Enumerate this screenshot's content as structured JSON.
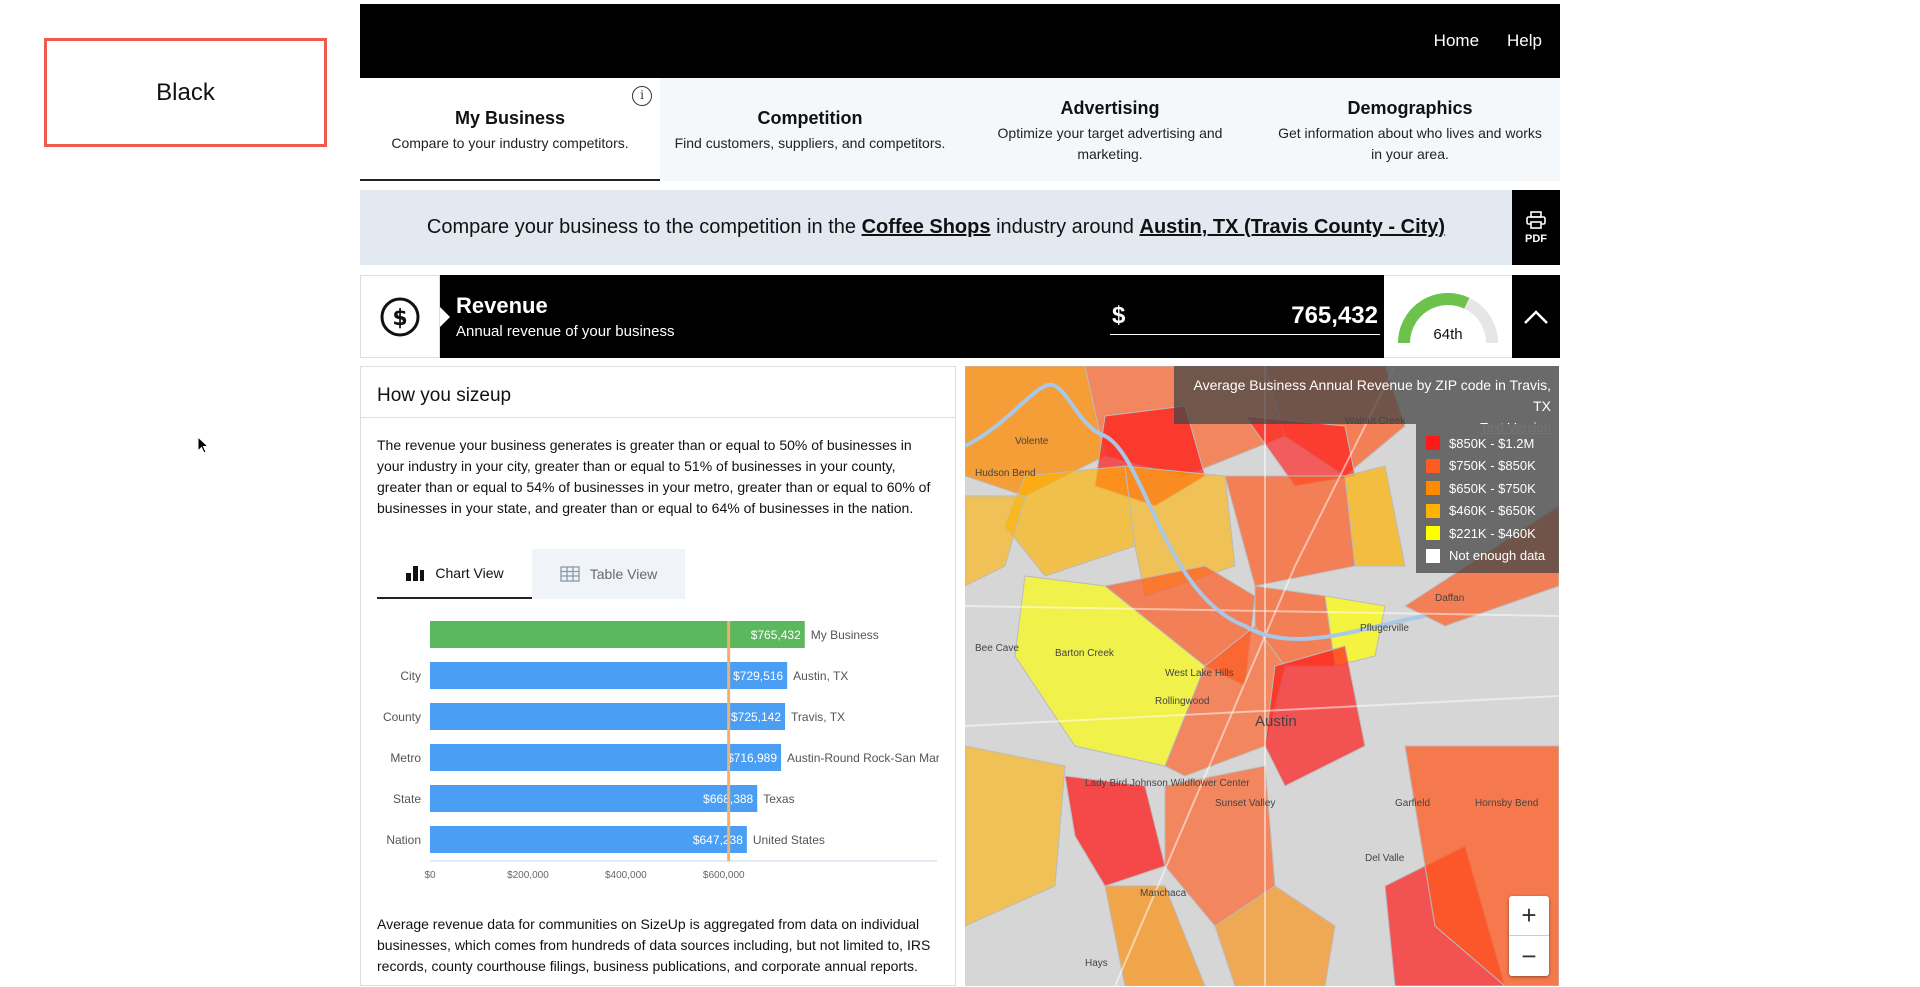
{
  "black_box": {
    "label": "Black"
  },
  "nav": {
    "home": "Home",
    "help": "Help"
  },
  "tabs": [
    {
      "title": "My Business",
      "subtitle": "Compare to your industry competitors."
    },
    {
      "title": "Competition",
      "subtitle": "Find customers, suppliers, and competitors."
    },
    {
      "title": "Advertising",
      "subtitle": "Optimize your target advertising and marketing."
    },
    {
      "title": "Demographics",
      "subtitle": "Get information about who lives and works in your area."
    }
  ],
  "compare": {
    "prefix": "Compare your business to the competition in the",
    "industry": "Coffee Shops",
    "middle": "industry around",
    "location": "Austin, TX (Travis County - City)",
    "pdf_label": "PDF"
  },
  "revenue": {
    "title": "Revenue",
    "subtitle": "Annual revenue of your business",
    "currency": "$",
    "value": "765,432",
    "percentile_label": "64th",
    "percentile": 64
  },
  "sizeup": {
    "heading": "How you sizeup",
    "paragraph": "The revenue your business generates is greater than or equal to 50% of businesses in your industry in your city, greater than or equal to 51% of businesses in your county, greater than or equal to 54% of businesses in your metro, greater than or equal to 60% of businesses in your state, and greater than or equal to 64% of businesses in the nation.",
    "chart_view": "Chart View",
    "table_view": "Table View",
    "footer": "Average revenue data for communities on SizeUp is aggregated from data on individual businesses, which comes from hundreds of data sources including, but not limited to, IRS records, county courthouse filings, business publications, and corporate annual reports."
  },
  "chart_data": {
    "type": "bar",
    "orientation": "horizontal",
    "categories": [
      "",
      "City",
      "County",
      "Metro",
      "State",
      "Nation"
    ],
    "value_labels": [
      "$765,432",
      "$729,516",
      "$725,142",
      "$716,989",
      "$668,388",
      "$647,238"
    ],
    "place_labels": [
      "My Business",
      "Austin, TX",
      "Travis, TX",
      "Austin-Round Rock-San Marcos, TX",
      "Texas",
      "United States"
    ],
    "values": [
      765432,
      729516,
      725142,
      716989,
      668388,
      647238
    ],
    "colors": [
      "#5cb85c",
      "#4a9ff5",
      "#4a9ff5",
      "#4a9ff5",
      "#4a9ff5",
      "#4a9ff5"
    ],
    "xticks": [
      "$0",
      "$200,000",
      "$400,000",
      "$600,000"
    ],
    "xtick_values": [
      0,
      200000,
      400000,
      600000
    ],
    "reference_line": 610000,
    "xlim": [
      0,
      770000
    ]
  },
  "map": {
    "title": "Average Business Annual Revenue by ZIP code in Travis, TX",
    "text_version": "Text Version",
    "legend": [
      {
        "label": "$850K - $1.2M",
        "color": "#ff1a1a"
      },
      {
        "label": "$750K - $850K",
        "color": "#ff5a1f"
      },
      {
        "label": "$650K - $750K",
        "color": "#ff8a00"
      },
      {
        "label": "$460K - $650K",
        "color": "#ffb300"
      },
      {
        "label": "$221K - $460K",
        "color": "#ffff00"
      },
      {
        "label": "Not enough data",
        "color": "#ffffff"
      }
    ],
    "place_names": [
      "Volente",
      "Hudson Bend",
      "Walnut Creek",
      "Barton Creek",
      "West Lake Hills",
      "Rollingwood",
      "Austin",
      "Lady Bird Johnson Wildflower Center",
      "Sunset Valley",
      "Daffan",
      "Del Valle",
      "Manchaca",
      "Hays",
      "Garfield",
      "Hornsby Bend",
      "Bee Cave",
      "Pflugerville"
    ],
    "zoom_in": "+",
    "zoom_out": "−"
  }
}
